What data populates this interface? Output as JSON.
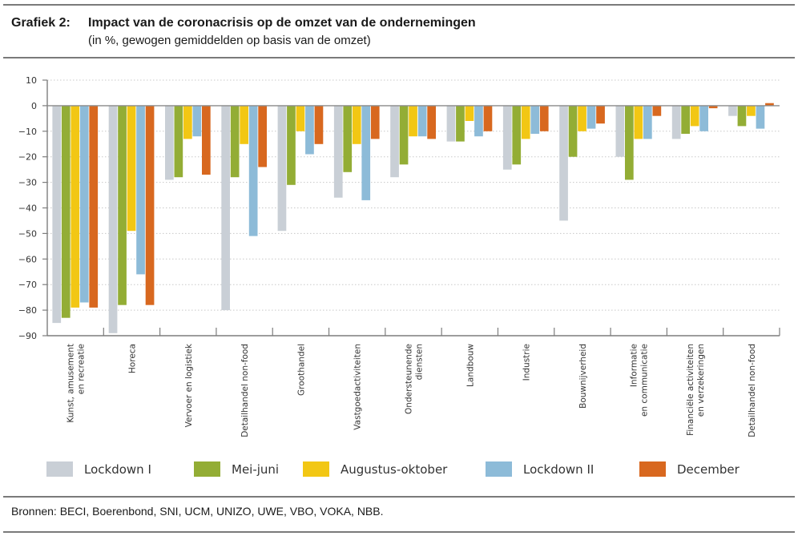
{
  "header": {
    "label": "Grafiek 2:",
    "title": "Impact van de coronacrisis op de omzet van de ondernemingen",
    "subtitle": "(in %, gewogen gemiddelden op basis van de omzet)"
  },
  "footer": {
    "source": "Bronnen: BECI, Boerenbond, SNI, UCM, UNIZO, UWE, VBO, VOKA, NBB."
  },
  "chart_data": {
    "type": "bar",
    "title": "Impact van de coronacrisis op de omzet van de ondernemingen",
    "subtitle": "(in %, gewogen gemiddelden op basis van de omzet)",
    "xlabel": "",
    "ylabel": "",
    "ylim": [
      -90,
      10
    ],
    "yticks": [
      10,
      0,
      -10,
      -20,
      -30,
      -40,
      -50,
      -60,
      -70,
      -80,
      -90
    ],
    "ytick_labels": [
      "10",
      "0",
      "−10",
      "−20",
      "−30",
      "−40",
      "−50",
      "−60",
      "−70",
      "−80",
      "−90"
    ],
    "grid": true,
    "legend_position": "bottom",
    "categories": [
      [
        "Kunst, amusement",
        "en recreatie"
      ],
      [
        "Horeca"
      ],
      [
        "Vervoer en logistiek"
      ],
      [
        "Detailhandel non-food"
      ],
      [
        "Groothandel"
      ],
      [
        "Vastgoedactiviteiten"
      ],
      [
        "Ondersteunende",
        "diensten"
      ],
      [
        "Landbouw"
      ],
      [
        "Industrie"
      ],
      [
        "Bouwnijverheid"
      ],
      [
        "Informatie",
        "en communicatie"
      ],
      [
        "Financiële activiteiten",
        "en verzekeringen"
      ],
      [
        "Detailhandel non-food"
      ]
    ],
    "series": [
      {
        "name": "Lockdown I",
        "color": "#c9cfd6",
        "values": [
          -85,
          -89,
          -29,
          -80,
          -49,
          -36,
          -28,
          -14,
          -25,
          -45,
          -20,
          -13,
          -4
        ]
      },
      {
        "name": "Mei-juni",
        "color": "#93ad35",
        "values": [
          -83,
          -78,
          -28,
          -28,
          -31,
          -26,
          -23,
          -14,
          -23,
          -20,
          -29,
          -11,
          -8
        ]
      },
      {
        "name": "Augustus-oktober",
        "color": "#f2c714",
        "values": [
          -79,
          -49,
          -13,
          -15,
          -10,
          -15,
          -12,
          -6,
          -13,
          -10,
          -13,
          -8,
          -4
        ]
      },
      {
        "name": "Lockdown II",
        "color": "#8dbbd8",
        "values": [
          -77,
          -66,
          -12,
          -51,
          -19,
          -37,
          -12,
          -12,
          -11,
          -9,
          -13,
          -10,
          -9
        ]
      },
      {
        "name": "December",
        "color": "#d8681f",
        "values": [
          -79,
          -78,
          -27,
          -24,
          -15,
          -13,
          -13,
          -10,
          -10,
          -7,
          -4,
          -1,
          1
        ]
      }
    ]
  }
}
